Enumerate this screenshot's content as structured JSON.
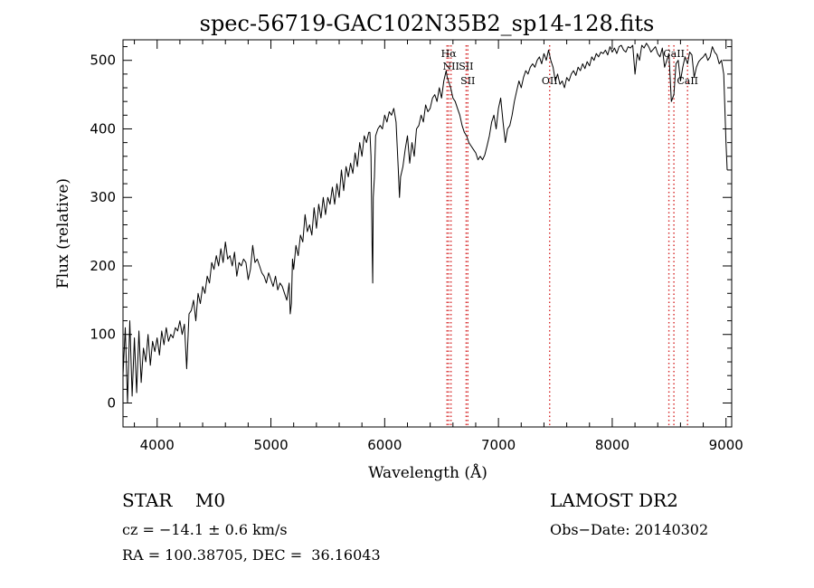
{
  "chart_data": {
    "type": "line",
    "title": "spec-56719-GAC102N35B2_sp14-128.fits",
    "xlabel": "Wavelength (Å)",
    "ylabel": "Flux (relative)",
    "xlim": [
      3700,
      9050
    ],
    "ylim": [
      -35,
      530
    ],
    "xticks": [
      4000,
      5000,
      6000,
      7000,
      8000,
      9000
    ],
    "yticks": [
      0,
      100,
      200,
      300,
      400,
      500
    ],
    "xtick_labels": [
      "4000",
      "5000",
      "6000",
      "7000",
      "8000",
      "9000"
    ],
    "ytick_labels": [
      "0",
      "100",
      "200",
      "300",
      "400",
      "500"
    ],
    "grid": false,
    "line_color": "#000000",
    "marker_line_color": "#d62728",
    "series": [
      {
        "x": [
          3700,
          3720,
          3740,
          3760,
          3780,
          3800,
          3820,
          3840,
          3860,
          3880,
          3900,
          3920,
          3940,
          3960,
          3980,
          4000,
          4020,
          4040,
          4060,
          4080,
          4100,
          4120,
          4140,
          4160,
          4180,
          4200,
          4220,
          4240,
          4260,
          4280,
          4300,
          4320,
          4340,
          4360,
          4380,
          4400,
          4420,
          4440,
          4460,
          4480,
          4500,
          4520,
          4540,
          4560,
          4580,
          4600,
          4620,
          4640,
          4660,
          4680,
          4700,
          4720,
          4740,
          4760,
          4780,
          4800,
          4820,
          4840,
          4860,
          4880,
          4900,
          4920,
          4940,
          4960,
          4980,
          5000,
          5020,
          5040,
          5060,
          5080,
          5100,
          5120,
          5140,
          5160,
          5170,
          5180,
          5190,
          5200,
          5220,
          5240,
          5260,
          5280,
          5300,
          5320,
          5340,
          5360,
          5380,
          5400,
          5420,
          5440,
          5460,
          5480,
          5500,
          5520,
          5540,
          5560,
          5580,
          5600,
          5620,
          5640,
          5660,
          5680,
          5700,
          5720,
          5740,
          5760,
          5780,
          5800,
          5820,
          5840,
          5860,
          5870,
          5880,
          5890,
          5895,
          5900,
          5910,
          5920,
          5940,
          5960,
          5980,
          6000,
          6020,
          6040,
          6060,
          6080,
          6100,
          6120,
          6130,
          6140,
          6160,
          6180,
          6200,
          6220,
          6240,
          6260,
          6280,
          6300,
          6320,
          6340,
          6360,
          6380,
          6400,
          6420,
          6440,
          6460,
          6480,
          6500,
          6520,
          6540,
          6550,
          6560,
          6580,
          6600,
          6620,
          6640,
          6660,
          6680,
          6700,
          6720,
          6740,
          6760,
          6780,
          6800,
          6820,
          6840,
          6860,
          6880,
          6900,
          6920,
          6940,
          6960,
          6980,
          7000,
          7020,
          7040,
          7060,
          7080,
          7100,
          7120,
          7140,
          7160,
          7180,
          7200,
          7220,
          7240,
          7260,
          7280,
          7300,
          7320,
          7340,
          7360,
          7380,
          7400,
          7420,
          7440,
          7460,
          7480,
          7500,
          7520,
          7540,
          7560,
          7580,
          7600,
          7620,
          7640,
          7660,
          7680,
          7700,
          7720,
          7740,
          7760,
          7780,
          7800,
          7820,
          7840,
          7860,
          7880,
          7900,
          7920,
          7940,
          7960,
          7980,
          8000,
          8020,
          8040,
          8060,
          8080,
          8100,
          8120,
          8140,
          8160,
          8180,
          8200,
          8220,
          8240,
          8260,
          8280,
          8300,
          8320,
          8340,
          8360,
          8380,
          8400,
          8420,
          8440,
          8460,
          8480,
          8498,
          8520,
          8542,
          8560,
          8580,
          8600,
          8620,
          8640,
          8662,
          8680,
          8700,
          8720,
          8740,
          8760,
          8780,
          8800,
          8820,
          8840,
          8860,
          8880,
          8900,
          8920,
          8940,
          8960,
          8980,
          9000,
          9010
        ],
        "y": [
          40,
          110,
          0,
          120,
          10,
          95,
          15,
          105,
          30,
          80,
          60,
          100,
          55,
          90,
          75,
          95,
          70,
          105,
          85,
          110,
          90,
          100,
          95,
          110,
          105,
          120,
          100,
          115,
          50,
          130,
          135,
          150,
          120,
          160,
          145,
          170,
          160,
          185,
          175,
          205,
          195,
          215,
          200,
          225,
          205,
          235,
          210,
          215,
          200,
          220,
          185,
          205,
          200,
          210,
          205,
          180,
          195,
          230,
          205,
          210,
          200,
          190,
          185,
          175,
          190,
          180,
          170,
          185,
          165,
          175,
          170,
          160,
          150,
          175,
          130,
          145,
          210,
          195,
          230,
          215,
          245,
          235,
          275,
          250,
          260,
          245,
          285,
          255,
          290,
          270,
          300,
          275,
          300,
          290,
          315,
          290,
          320,
          300,
          340,
          310,
          345,
          330,
          350,
          335,
          365,
          345,
          380,
          360,
          390,
          380,
          395,
          395,
          360,
          220,
          175,
          300,
          330,
          390,
          400,
          405,
          400,
          420,
          410,
          425,
          420,
          430,
          410,
          340,
          300,
          330,
          345,
          370,
          390,
          350,
          380,
          360,
          400,
          405,
          420,
          410,
          435,
          425,
          430,
          445,
          450,
          440,
          460,
          445,
          470,
          485,
          475,
          470,
          460,
          445,
          440,
          430,
          420,
          405,
          395,
          390,
          380,
          375,
          370,
          365,
          355,
          360,
          355,
          362,
          375,
          390,
          410,
          420,
          400,
          430,
          445,
          410,
          380,
          400,
          405,
          420,
          440,
          455,
          470,
          460,
          475,
          485,
          480,
          490,
          495,
          490,
          500,
          505,
          495,
          510,
          500,
          515,
          500,
          490,
          470,
          480,
          465,
          470,
          460,
          475,
          470,
          480,
          485,
          478,
          490,
          485,
          495,
          488,
          498,
          492,
          505,
          500,
          510,
          505,
          512,
          510,
          515,
          508,
          520,
          512,
          518,
          510,
          520,
          522,
          515,
          512,
          520,
          518,
          522,
          480,
          510,
          500,
          522,
          518,
          525,
          520,
          512,
          516,
          520,
          510,
          505,
          518,
          490,
          500,
          510,
          440,
          450,
          495,
          500,
          470,
          490,
          505,
          495,
          512,
          508,
          475,
          490,
          498,
          502,
          505,
          510,
          500,
          505,
          520,
          512,
          508,
          495,
          500,
          480,
          380,
          340
        ]
      }
    ],
    "line_markers": [
      {
        "x": 6548,
        "labels": []
      },
      {
        "x": 6563,
        "labels": [
          "Hα"
        ]
      },
      {
        "x": 6583,
        "labels": [
          "NII"
        ]
      },
      {
        "x": 6716,
        "labels": [
          "SII"
        ]
      },
      {
        "x": 6731,
        "labels": [
          "SII"
        ]
      },
      {
        "x": 7450,
        "labels": [
          "OII"
        ]
      },
      {
        "x": 8498,
        "labels": []
      },
      {
        "x": 8542,
        "labels": [
          "CaII"
        ]
      },
      {
        "x": 8662,
        "labels": [
          "CaII"
        ]
      }
    ]
  },
  "info": {
    "object_line": "STAR    M0",
    "cz_line": "cz = −14.1 ± 0.6 km/s",
    "radec_line": "RA = 100.38705, DEC =  36.16043",
    "survey": "LAMOST DR2",
    "obs_date_line": "Obs−Date: 20140302"
  }
}
